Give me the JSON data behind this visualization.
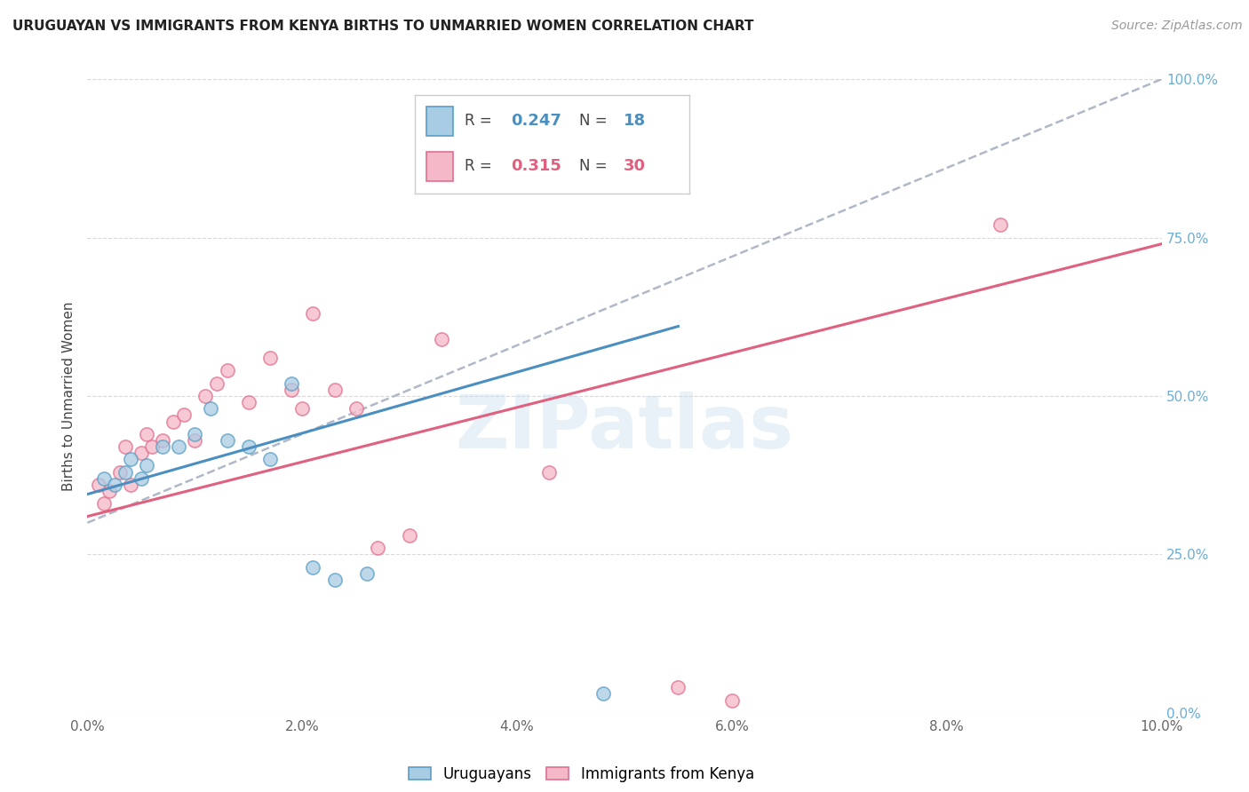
{
  "title": "URUGUAYAN VS IMMIGRANTS FROM KENYA BIRTHS TO UNMARRIED WOMEN CORRELATION CHART",
  "source": "Source: ZipAtlas.com",
  "ylabel": "Births to Unmarried Women",
  "xlim": [
    0.0,
    10.0
  ],
  "ylim": [
    0.0,
    100.0
  ],
  "x_tick_positions": [
    0,
    2,
    4,
    6,
    8,
    10
  ],
  "x_tick_labels": [
    "0.0%",
    "2.0%",
    "4.0%",
    "6.0%",
    "8.0%",
    "10.0%"
  ],
  "y_tick_positions": [
    0,
    25,
    50,
    75,
    100
  ],
  "y_tick_labels": [
    "0.0%",
    "25.0%",
    "50.0%",
    "75.0%",
    "100.0%"
  ],
  "legend_blue_R": "0.247",
  "legend_blue_N": "18",
  "legend_pink_R": "0.315",
  "legend_pink_N": "30",
  "blue_fill_color": "#a8cce4",
  "blue_edge_color": "#5a9fc5",
  "pink_fill_color": "#f5b8c8",
  "pink_edge_color": "#e07090",
  "blue_line_color": "#4a8fc0",
  "pink_line_color": "#e06080",
  "dashed_line_color": "#b0b8c8",
  "watermark": "ZIPatlas",
  "uruguayans_x": [
    0.15,
    0.25,
    0.35,
    0.4,
    0.5,
    0.55,
    0.7,
    0.85,
    1.0,
    1.15,
    1.3,
    1.5,
    1.7,
    1.9,
    2.1,
    2.3,
    2.6,
    4.8
  ],
  "uruguayans_y": [
    37,
    36,
    38,
    40,
    37,
    39,
    42,
    42,
    44,
    48,
    43,
    42,
    40,
    52,
    23,
    21,
    22,
    3
  ],
  "kenya_x": [
    0.1,
    0.15,
    0.2,
    0.3,
    0.35,
    0.4,
    0.5,
    0.55,
    0.6,
    0.7,
    0.8,
    0.9,
    1.0,
    1.1,
    1.2,
    1.3,
    1.5,
    1.7,
    1.9,
    2.0,
    2.1,
    2.3,
    2.5,
    2.7,
    3.0,
    3.3,
    4.3,
    5.5,
    6.0,
    8.5
  ],
  "kenya_y": [
    36,
    33,
    35,
    38,
    42,
    36,
    41,
    44,
    42,
    43,
    46,
    47,
    43,
    50,
    52,
    54,
    49,
    56,
    51,
    48,
    63,
    51,
    48,
    26,
    28,
    59,
    38,
    4,
    2,
    77
  ],
  "blue_trend_x": [
    0.0,
    5.5
  ],
  "blue_trend_y": [
    34.5,
    61.0
  ],
  "pink_trend_x": [
    0.0,
    10.0
  ],
  "pink_trend_y": [
    31.0,
    74.0
  ],
  "dashed_trend_x": [
    0.0,
    10.0
  ],
  "dashed_trend_y": [
    30.0,
    100.0
  ],
  "dot_size": 120,
  "dot_alpha": 0.75,
  "grid_color": "#d8d8d8",
  "bg_color": "#ffffff",
  "title_color": "#222222",
  "source_color": "#999999",
  "ylabel_color": "#444444",
  "tick_color": "#666666",
  "right_tick_color": "#6aaed6"
}
